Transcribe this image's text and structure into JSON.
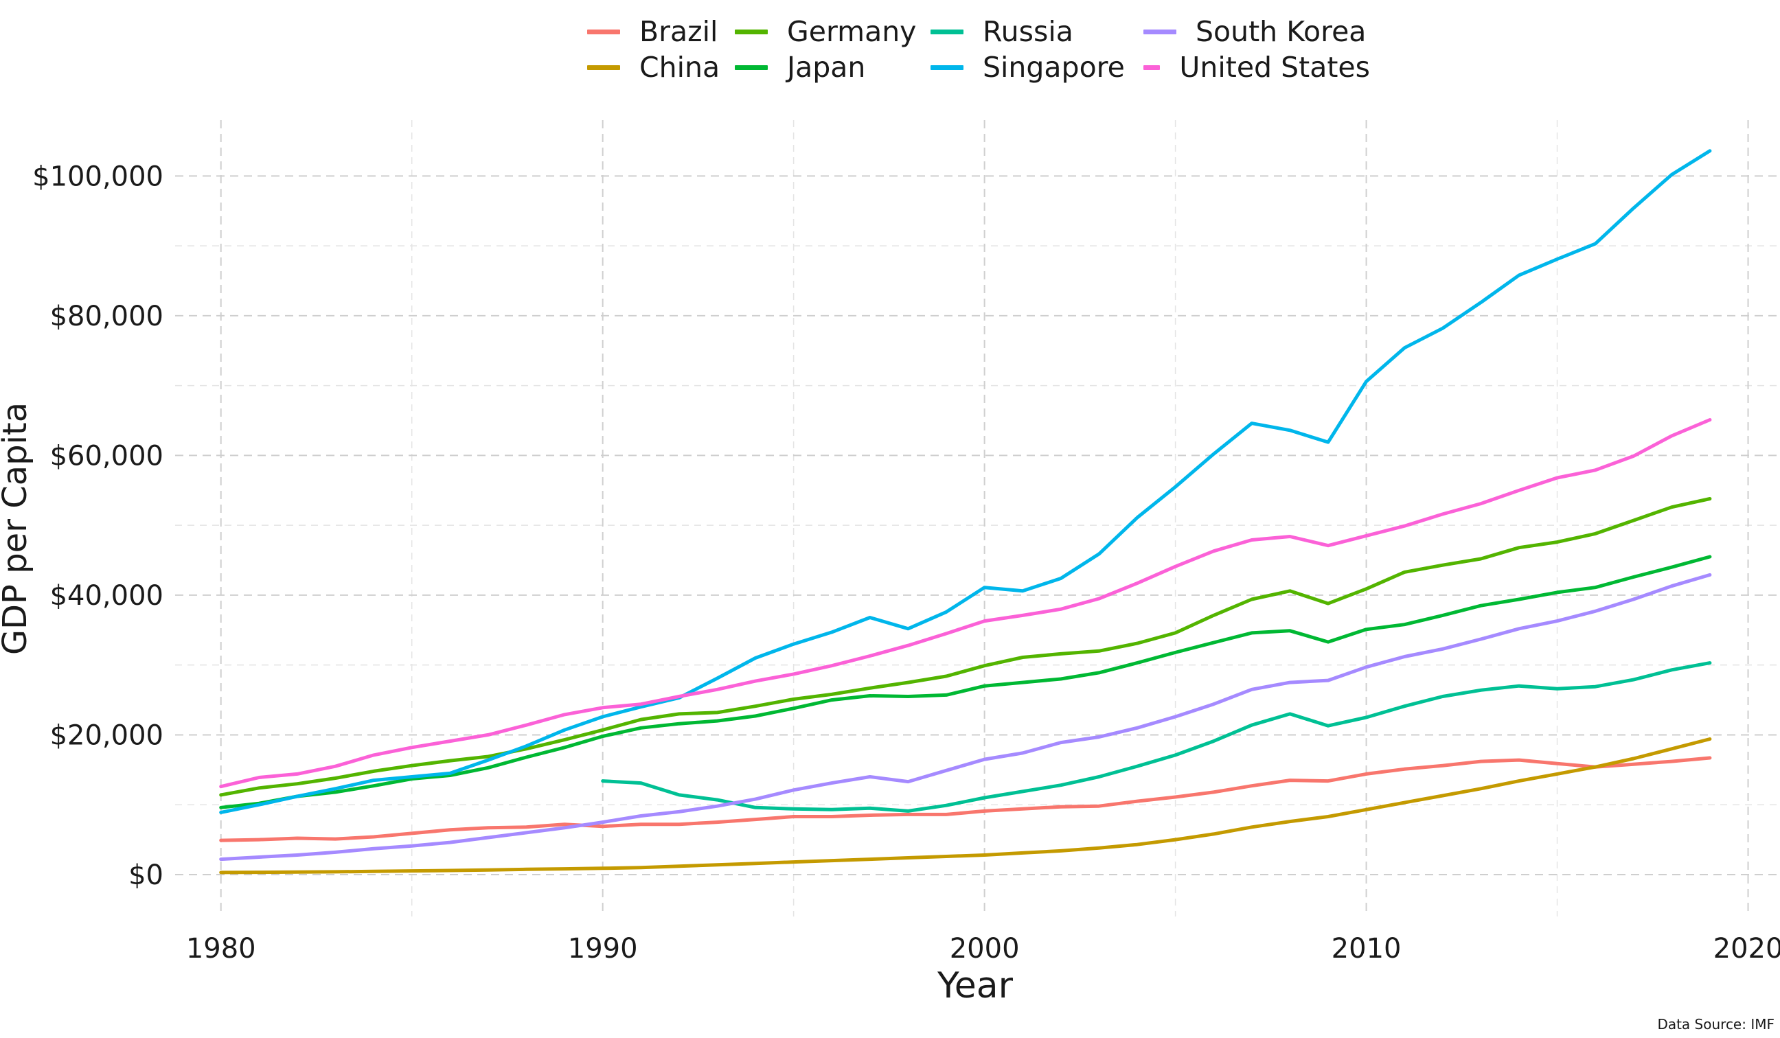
{
  "chart_data": {
    "type": "line",
    "title": "",
    "xlabel": "Year",
    "ylabel": "GDP per Capita",
    "source": "Data Source: IMF",
    "xlim": [
      1978.8,
      2020.8
    ],
    "ylim": [
      -6000,
      108000
    ],
    "x_ticks": [
      1980,
      1990,
      2000,
      2010,
      2020
    ],
    "y_ticks": [
      0,
      20000,
      40000,
      60000,
      80000,
      100000
    ],
    "y_tick_labels": [
      "$0",
      "$20,000",
      "$40,000",
      "$60,000",
      "$80,000",
      "$100,000"
    ],
    "grid": true,
    "legend_position": "top",
    "x": [
      1980,
      1981,
      1982,
      1983,
      1984,
      1985,
      1986,
      1987,
      1988,
      1989,
      1990,
      1991,
      1992,
      1993,
      1994,
      1995,
      1996,
      1997,
      1998,
      1999,
      2000,
      2001,
      2002,
      2003,
      2004,
      2005,
      2006,
      2007,
      2008,
      2009,
      2010,
      2011,
      2012,
      2013,
      2014,
      2015,
      2016,
      2017,
      2018,
      2019
    ],
    "series": [
      {
        "name": "Brazil",
        "color": "#F8766D",
        "values": [
          4900,
          5000,
          5200,
          5100,
          5400,
          5900,
          6400,
          6700,
          6800,
          7200,
          6900,
          7200,
          7200,
          7500,
          7900,
          8300,
          8300,
          8500,
          8600,
          8600,
          9100,
          9400,
          9700,
          9800,
          10500,
          11100,
          11800,
          12700,
          13500,
          13400,
          14400,
          15100,
          15600,
          16200,
          16400,
          15900,
          15400,
          15800,
          16200,
          16700
        ]
      },
      {
        "name": "China",
        "color": "#C49A00",
        "values": [
          300,
          330,
          360,
          400,
          460,
          530,
          580,
          650,
          750,
          820,
          900,
          1000,
          1200,
          1400,
          1600,
          1800,
          2000,
          2200,
          2400,
          2600,
          2800,
          3100,
          3400,
          3800,
          4300,
          5000,
          5800,
          6800,
          7600,
          8300,
          9300,
          10300,
          11300,
          12300,
          13400,
          14400,
          15400,
          16600,
          18000,
          19400
        ]
      },
      {
        "name": "Germany",
        "color": "#53B400",
        "values": [
          11400,
          12400,
          13000,
          13800,
          14800,
          15600,
          16300,
          16900,
          18000,
          19300,
          20700,
          22200,
          23000,
          23200,
          24100,
          25100,
          25800,
          26700,
          27500,
          28400,
          29900,
          31100,
          31600,
          32000,
          33100,
          34600,
          37100,
          39400,
          40600,
          38800,
          40900,
          43300,
          44300,
          45200,
          46800,
          47600,
          48800,
          50700,
          52600,
          53800
        ]
      },
      {
        "name": "Japan",
        "color": "#00B833",
        "values": [
          9600,
          10200,
          11200,
          11800,
          12700,
          13700,
          14200,
          15300,
          16800,
          18200,
          19800,
          21000,
          21600,
          22000,
          22700,
          23800,
          25000,
          25600,
          25500,
          25700,
          27000,
          27500,
          28000,
          28900,
          30300,
          31800,
          33200,
          34600,
          34900,
          33300,
          35100,
          35800,
          37100,
          38500,
          39400,
          40400,
          41100,
          42600,
          44000,
          45500
        ]
      },
      {
        "name": "Russia",
        "color": "#00C094",
        "values": [
          null,
          null,
          null,
          null,
          null,
          null,
          null,
          null,
          null,
          null,
          13400,
          13100,
          11400,
          10700,
          9600,
          9400,
          9300,
          9500,
          9100,
          9900,
          11000,
          11900,
          12800,
          14000,
          15500,
          17100,
          19100,
          21400,
          23000,
          21300,
          22500,
          24100,
          25500,
          26400,
          27000,
          26600,
          26900,
          27900,
          29300,
          30300
        ]
      },
      {
        "name": "Singapore",
        "color": "#00B6EB",
        "values": [
          8900,
          10000,
          11200,
          12300,
          13500,
          14000,
          14500,
          16400,
          18400,
          20700,
          22600,
          24000,
          25300,
          28100,
          31000,
          33000,
          34700,
          36800,
          35200,
          37600,
          41100,
          40600,
          42400,
          45900,
          51100,
          55500,
          60200,
          64600,
          63600,
          61900,
          70600,
          75400,
          78200,
          81900,
          85800,
          88100,
          90300,
          95400,
          100200,
          103600
        ]
      },
      {
        "name": "South Korea",
        "color": "#A58AFF",
        "values": [
          2200,
          2500,
          2800,
          3200,
          3700,
          4100,
          4600,
          5300,
          6000,
          6700,
          7500,
          8400,
          9000,
          9800,
          10800,
          12100,
          13100,
          14000,
          13300,
          14900,
          16500,
          17400,
          18900,
          19700,
          21000,
          22600,
          24400,
          26500,
          27500,
          27800,
          29700,
          31200,
          32300,
          33700,
          35200,
          36300,
          37700,
          39400,
          41300,
          42900
        ]
      },
      {
        "name": "United States",
        "color": "#FB61D7",
        "values": [
          12600,
          13900,
          14400,
          15500,
          17100,
          18200,
          19100,
          20000,
          21400,
          22900,
          23900,
          24400,
          25500,
          26500,
          27700,
          28700,
          29900,
          31300,
          32800,
          34500,
          36300,
          37100,
          38000,
          39500,
          41700,
          44100,
          46300,
          47900,
          48400,
          47100,
          48500,
          49900,
          51600,
          53100,
          55000,
          56800,
          57900,
          59900,
          62800,
          65100
        ]
      }
    ]
  }
}
